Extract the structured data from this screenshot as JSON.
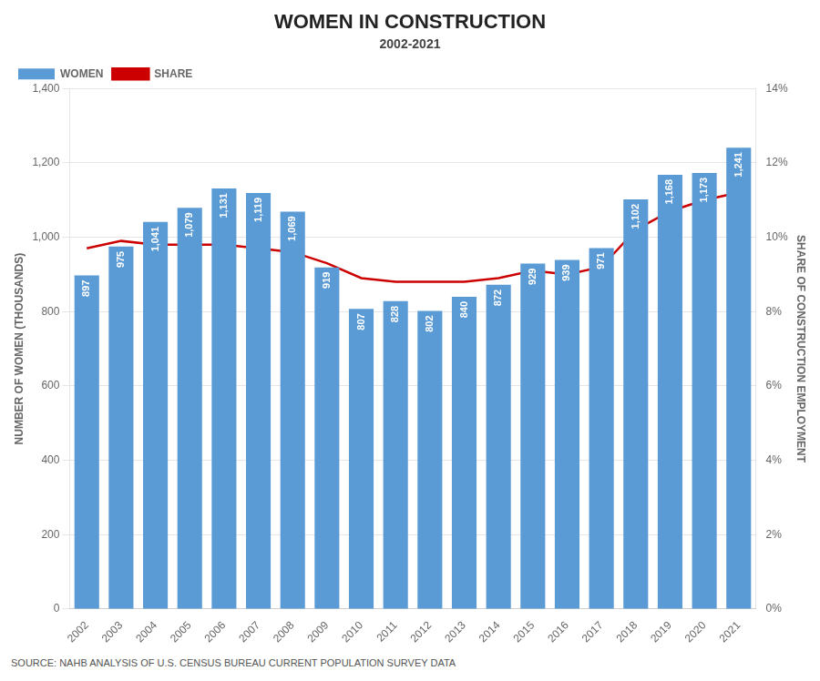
{
  "chart_data": {
    "type": "bar",
    "title": "WOMEN IN CONSTRUCTION",
    "subtitle": "2002-2021",
    "categories": [
      "2002",
      "2003",
      "2004",
      "2005",
      "2006",
      "2007",
      "2008",
      "2009",
      "2010",
      "2011",
      "2012",
      "2013",
      "2014",
      "2015",
      "2016",
      "2017",
      "2018",
      "2019",
      "2020",
      "2021"
    ],
    "series": [
      {
        "name": "WOMEN",
        "type": "bar",
        "color": "#5b9bd5",
        "values": [
          897,
          975,
          1041,
          1079,
          1131,
          1119,
          1069,
          919,
          807,
          828,
          802,
          840,
          872,
          929,
          939,
          971,
          1102,
          1168,
          1173,
          1241
        ],
        "data_labels": true,
        "value_labels": [
          "897",
          "975",
          "1,041",
          "1,079",
          "1,131",
          "1,119",
          "1,069",
          "919",
          "807",
          "828",
          "802",
          "840",
          "872",
          "929",
          "939",
          "971",
          "1,102",
          "1,168",
          "1,173",
          "1,241"
        ]
      },
      {
        "name": "SHARE",
        "type": "line",
        "color": "#cc0000",
        "axis": "y2",
        "values": [
          9.7,
          9.9,
          9.8,
          9.8,
          9.8,
          9.7,
          9.6,
          9.3,
          8.9,
          8.8,
          8.8,
          8.8,
          8.9,
          9.1,
          9.0,
          9.2,
          10.2,
          10.7,
          11.0,
          11.2
        ]
      }
    ],
    "ylabel": "NUMBER OF WOMEN (THOUSANDS)",
    "y2label": "SHARE OF CONSTRUCTION EMPLOYMENT",
    "ylim": [
      0,
      1400
    ],
    "yticks": [
      0,
      200,
      400,
      600,
      800,
      {
        "value": 1000,
        "label": "1,000"
      },
      {
        "value": 1200,
        "label": "1,200"
      },
      {
        "value": 1400,
        "label": "1,400"
      }
    ],
    "y2lim": [
      0,
      14
    ],
    "y2ticks": [
      {
        "value": 0,
        "label": "0%"
      },
      {
        "value": 2,
        "label": "2%"
      },
      {
        "value": 4,
        "label": "4%"
      },
      {
        "value": 6,
        "label": "6%"
      },
      {
        "value": 8,
        "label": "8%"
      },
      {
        "value": 10,
        "label": "10%"
      },
      {
        "value": 12,
        "label": "12%"
      },
      {
        "value": 14,
        "label": "14%"
      }
    ],
    "grid": true,
    "legend": "upper left",
    "source": "SOURCE: NAHB ANALYSIS OF U.S. CENSUS BUREAU CURRENT POPULATION SURVEY DATA"
  }
}
